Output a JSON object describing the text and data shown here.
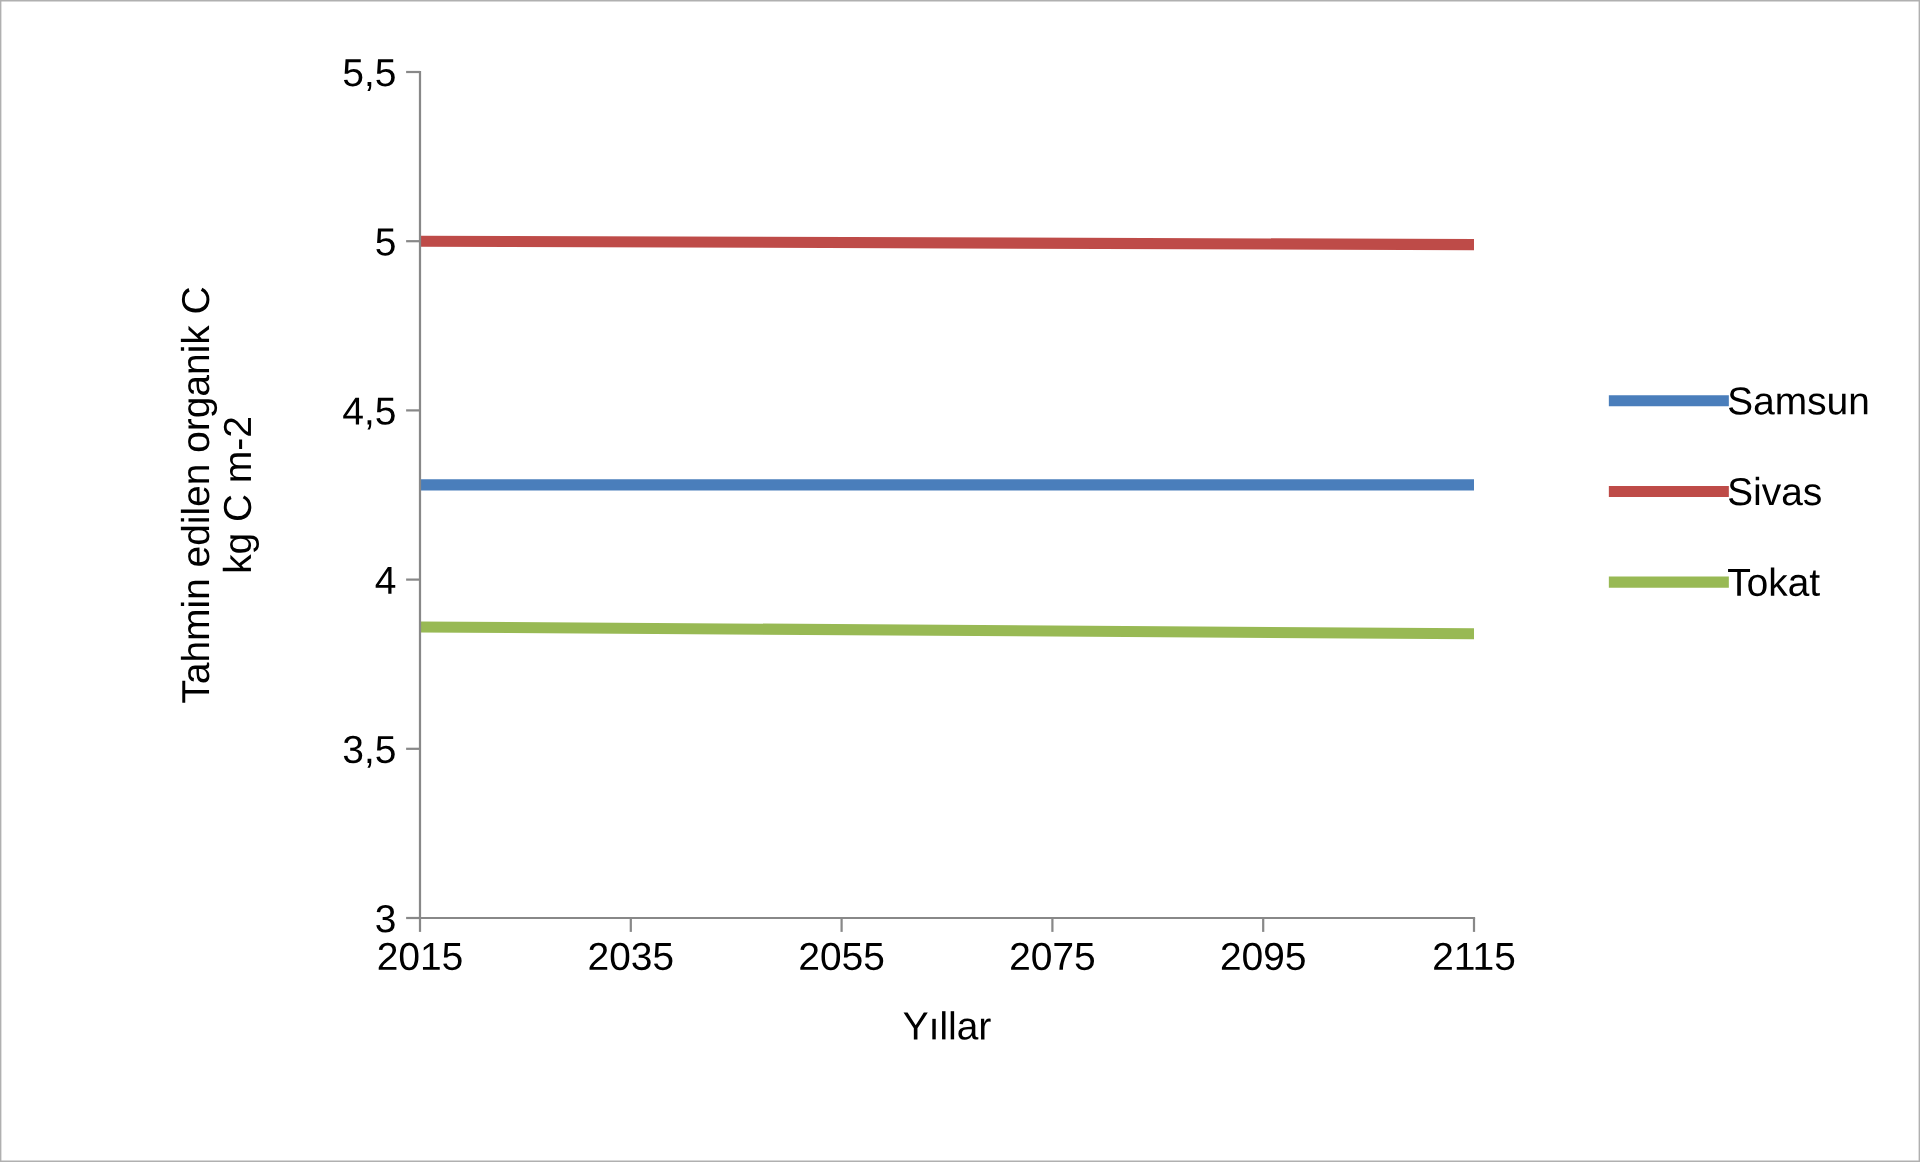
{
  "chart_data": {
    "type": "line",
    "xlabel": "Yıllar",
    "ylabel": "Tahmin edilen organik C\nkg C m-2",
    "x": [
      2015,
      2115
    ],
    "series": [
      {
        "name": "Samsun",
        "color": "#4a7ebb",
        "values": [
          4.28,
          4.28
        ]
      },
      {
        "name": "Sivas",
        "color": "#be4b48",
        "values": [
          5.0,
          4.99
        ]
      },
      {
        "name": "Tokat",
        "color": "#98b954",
        "values": [
          3.86,
          3.84
        ]
      }
    ],
    "xlim": [
      2015,
      2115
    ],
    "xticks": [
      2015,
      2035,
      2055,
      2075,
      2095,
      2115
    ],
    "ylim": [
      3,
      5.5
    ],
    "yticks": [
      {
        "value": 3,
        "label": "3"
      },
      {
        "value": 3.5,
        "label": "3,5"
      },
      {
        "value": 4,
        "label": "4"
      },
      {
        "value": 4.5,
        "label": "4,5"
      },
      {
        "value": 5,
        "label": "5"
      },
      {
        "value": 5.5,
        "label": "5,5"
      }
    ],
    "grid": false,
    "legend": "right",
    "marker": "none",
    "line_style": "solid"
  }
}
